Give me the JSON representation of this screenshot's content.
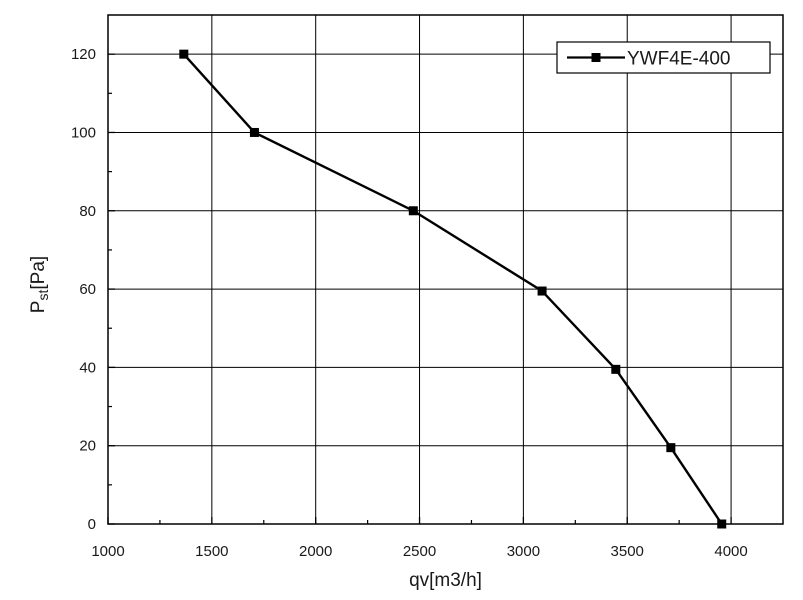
{
  "chart_data": {
    "type": "line",
    "xlabel": "qv[m3/h]",
    "ylabel_main": "P",
    "ylabel_sub": "st",
    "ylabel_tail": "[Pa]",
    "xlim": [
      1000,
      4250
    ],
    "ylim": [
      0,
      130
    ],
    "x_ticks": [
      1000,
      1500,
      2000,
      2500,
      3000,
      3500,
      4000
    ],
    "y_ticks": [
      0,
      20,
      40,
      60,
      80,
      100,
      120
    ],
    "grid": true,
    "legend_position": "top-right",
    "series": [
      {
        "name": "YWF4E-400",
        "color": "#000000",
        "marker": "square",
        "x": [
          1365,
          1705,
          2470,
          3090,
          3445,
          3710,
          3955
        ],
        "y": [
          120,
          100,
          80,
          59.5,
          39.5,
          19.5,
          0
        ]
      }
    ]
  }
}
